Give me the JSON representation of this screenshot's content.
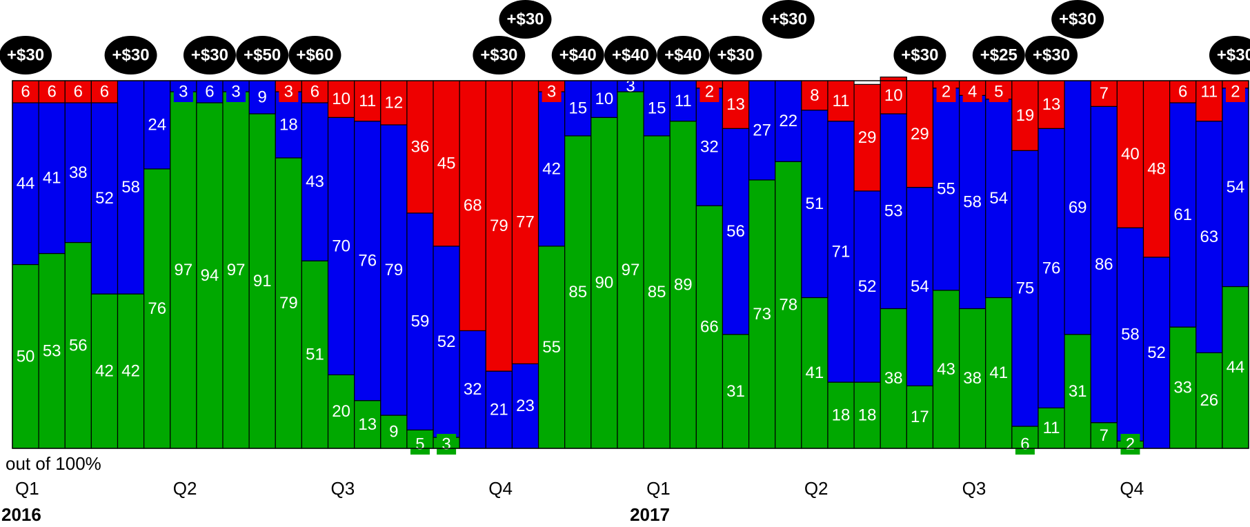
{
  "chart_data": {
    "type": "bar",
    "stacked": true,
    "percent_scale": "out of 100%",
    "colors": {
      "green": "#00a800",
      "blue": "#0000f0",
      "red": "#ee0000",
      "bubble": "#000000"
    },
    "series": [
      {
        "name": "",
        "color": "green",
        "values": [
          50,
          53,
          56,
          42,
          42,
          76,
          97,
          94,
          97,
          91,
          79,
          51,
          20,
          13,
          9,
          5,
          3,
          0,
          0,
          0,
          55,
          85,
          90,
          97,
          85,
          89,
          66,
          31,
          73,
          78,
          41,
          18,
          18,
          38,
          17,
          43,
          38,
          41,
          6,
          11,
          31,
          7,
          2,
          0,
          33,
          26,
          44
        ]
      },
      {
        "name": "",
        "color": "blue",
        "values": [
          44,
          41,
          38,
          52,
          58,
          24,
          3,
          6,
          3,
          9,
          18,
          43,
          70,
          76,
          79,
          59,
          52,
          32,
          21,
          23,
          42,
          15,
          10,
          3,
          15,
          11,
          32,
          56,
          27,
          22,
          51,
          71,
          52,
          53,
          54,
          55,
          58,
          54,
          75,
          76,
          69,
          86,
          58,
          52,
          61,
          63,
          54
        ]
      },
      {
        "name": "",
        "color": "red",
        "values": [
          6,
          6,
          6,
          6,
          0,
          0,
          0,
          0,
          0,
          0,
          3,
          6,
          10,
          11,
          12,
          36,
          45,
          68,
          79,
          77,
          3,
          0,
          0,
          0,
          0,
          0,
          2,
          13,
          0,
          0,
          8,
          11,
          29,
          10,
          29,
          2,
          4,
          5,
          19,
          13,
          0,
          7,
          40,
          48,
          6,
          11,
          2
        ]
      }
    ],
    "boxed_labels": {
      "green": [
        15,
        16,
        38,
        42
      ],
      "blue": [
        6,
        7,
        8
      ],
      "red": [
        0,
        1,
        2,
        3,
        10,
        11,
        20,
        26,
        35,
        36,
        37,
        44,
        45,
        46
      ]
    },
    "bubbles": [
      {
        "bar": 0,
        "text": "+$30",
        "row": 2
      },
      {
        "bar": 4,
        "text": "+$30",
        "row": 2
      },
      {
        "bar": 7,
        "text": "+$30",
        "row": 2
      },
      {
        "bar": 9,
        "text": "+$50",
        "row": 2
      },
      {
        "bar": 11,
        "text": "+$60",
        "row": 2
      },
      {
        "bar": 18,
        "text": "+$30",
        "row": 2
      },
      {
        "bar": 19,
        "text": "+$30",
        "row": 1
      },
      {
        "bar": 21,
        "text": "+$40",
        "row": 2
      },
      {
        "bar": 23,
        "text": "+$40",
        "row": 2
      },
      {
        "bar": 25,
        "text": "+$40",
        "row": 2
      },
      {
        "bar": 27,
        "text": "+$30",
        "row": 2
      },
      {
        "bar": 29,
        "text": "+$30",
        "row": 1
      },
      {
        "bar": 34,
        "text": "+$30",
        "row": 2
      },
      {
        "bar": 37,
        "text": "+$25",
        "row": 2
      },
      {
        "bar": 39,
        "text": "+$30",
        "row": 2
      },
      {
        "bar": 40,
        "text": "+$30",
        "row": 1
      },
      {
        "bar": 46,
        "text": "+$30",
        "row": 2
      }
    ],
    "quarters": [
      {
        "label": "Q1",
        "bar": 0
      },
      {
        "label": "Q2",
        "bar": 6
      },
      {
        "label": "Q3",
        "bar": 12
      },
      {
        "label": "Q4",
        "bar": 18
      },
      {
        "label": "Q1",
        "bar": 24
      },
      {
        "label": "Q2",
        "bar": 30
      },
      {
        "label": "Q3",
        "bar": 36
      },
      {
        "label": "Q4",
        "bar": 42
      }
    ],
    "years": [
      {
        "label": "2016",
        "bar": 0
      },
      {
        "label": "2017",
        "bar": 24
      }
    ],
    "grid": false,
    "legend": "none"
  }
}
